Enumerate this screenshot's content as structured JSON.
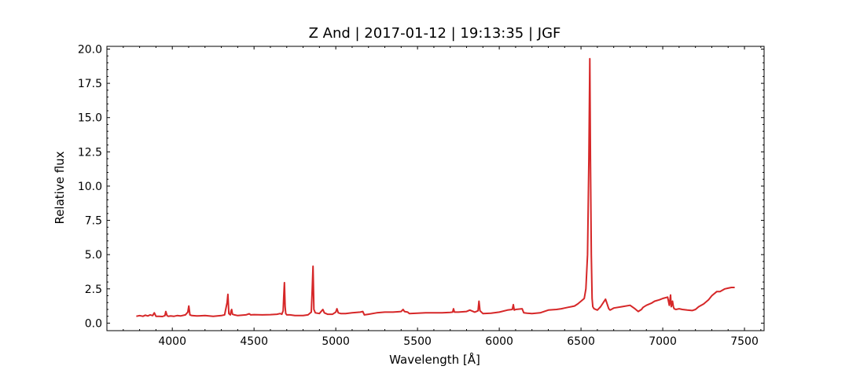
{
  "chart_data": {
    "type": "line",
    "title": "Z And | 2017-01-12 | 19:13:35 | JGF",
    "xlabel": "Wavelength [Å]",
    "ylabel": "Relative flux",
    "xlim": [
      3600,
      7620
    ],
    "ylim": [
      -0.55,
      20.2
    ],
    "x_ticks": [
      4000,
      4500,
      5000,
      5500,
      6000,
      6500,
      7000,
      7500
    ],
    "y_ticks": [
      0.0,
      2.5,
      5.0,
      7.5,
      10.0,
      12.5,
      15.0,
      17.5,
      20.0
    ],
    "x_tick_labels": [
      "4000",
      "4500",
      "5000",
      "5500",
      "6000",
      "6500",
      "7000",
      "7500"
    ],
    "y_tick_labels": [
      "0.0",
      "2.5",
      "5.0",
      "7.5",
      "10.0",
      "12.5",
      "15.0",
      "17.5",
      "20.0"
    ],
    "grid": false,
    "colors": {
      "line": "#d62728"
    },
    "series": [
      {
        "x": [
          3780,
          3800,
          3820,
          3835,
          3850,
          3865,
          3880,
          3890,
          3900,
          3920,
          3940,
          3955,
          3960,
          3968,
          3975,
          3990,
          4010,
          4030,
          4050,
          4080,
          4095,
          4101,
          4108,
          4120,
          4150,
          4200,
          4250,
          4300,
          4320,
          4335,
          4340,
          4346,
          4355,
          4360,
          4363,
          4368,
          4380,
          4400,
          4450,
          4471,
          4480,
          4500,
          4550,
          4600,
          4640,
          4660,
          4670,
          4678,
          4682,
          4686,
          4690,
          4694,
          4700,
          4720,
          4750,
          4800,
          4830,
          4850,
          4856,
          4861,
          4866,
          4875,
          4900,
          4921,
          4930,
          4950,
          4980,
          5000,
          5007,
          5015,
          5030,
          5060,
          5100,
          5150,
          5165,
          5175,
          5200,
          5250,
          5300,
          5350,
          5400,
          5412,
          5420,
          5440,
          5450,
          5500,
          5550,
          5600,
          5650,
          5700,
          5715,
          5720,
          5726,
          5750,
          5800,
          5820,
          5850,
          5870,
          5876,
          5882,
          5900,
          5950,
          6000,
          6050,
          6080,
          6086,
          6092,
          6100,
          6140,
          6150,
          6170,
          6200,
          6250,
          6300,
          6350,
          6380,
          6400,
          6420,
          6440,
          6460,
          6480,
          6500,
          6520,
          6530,
          6540,
          6548,
          6554,
          6558,
          6563,
          6568,
          6572,
          6580,
          6600,
          6620,
          6650,
          6670,
          6678,
          6685,
          6700,
          6750,
          6800,
          6830,
          6850,
          6870,
          6880,
          6900,
          6930,
          6950,
          6980,
          7000,
          7030,
          7040,
          7048,
          7052,
          7060,
          7065,
          7070,
          7080,
          7100,
          7120,
          7150,
          7180,
          7200,
          7220,
          7250,
          7270,
          7280,
          7300,
          7330,
          7350,
          7380,
          7400,
          7420,
          7440
        ],
        "y": [
          0.5,
          0.55,
          0.5,
          0.58,
          0.52,
          0.6,
          0.55,
          0.75,
          0.5,
          0.5,
          0.48,
          0.55,
          0.85,
          0.55,
          0.5,
          0.52,
          0.5,
          0.55,
          0.52,
          0.6,
          0.8,
          1.25,
          0.6,
          0.55,
          0.52,
          0.55,
          0.5,
          0.55,
          0.6,
          1.5,
          2.1,
          0.7,
          0.6,
          0.9,
          1.0,
          0.65,
          0.6,
          0.55,
          0.6,
          0.68,
          0.6,
          0.62,
          0.6,
          0.62,
          0.65,
          0.7,
          0.65,
          0.9,
          2.0,
          2.95,
          1.2,
          0.7,
          0.6,
          0.6,
          0.55,
          0.55,
          0.6,
          0.8,
          2.5,
          4.15,
          1.0,
          0.75,
          0.7,
          1.0,
          0.75,
          0.65,
          0.65,
          0.8,
          1.05,
          0.75,
          0.7,
          0.7,
          0.75,
          0.8,
          0.85,
          0.6,
          0.65,
          0.75,
          0.8,
          0.8,
          0.85,
          1.0,
          0.85,
          0.8,
          0.7,
          0.72,
          0.75,
          0.75,
          0.75,
          0.78,
          0.8,
          1.05,
          0.8,
          0.8,
          0.85,
          0.95,
          0.8,
          0.9,
          1.6,
          0.9,
          0.7,
          0.72,
          0.8,
          0.95,
          1.0,
          1.35,
          0.95,
          1.0,
          1.05,
          0.75,
          0.72,
          0.7,
          0.75,
          0.95,
          1.0,
          1.05,
          1.1,
          1.15,
          1.2,
          1.25,
          1.4,
          1.6,
          1.8,
          2.5,
          5.0,
          12.0,
          19.3,
          12.0,
          5.0,
          1.8,
          1.2,
          1.05,
          0.95,
          1.2,
          1.75,
          1.05,
          0.95,
          1.0,
          1.1,
          1.2,
          1.3,
          1.05,
          0.85,
          1.0,
          1.15,
          1.3,
          1.45,
          1.6,
          1.7,
          1.8,
          1.9,
          1.3,
          2.05,
          1.2,
          1.6,
          1.2,
          1.05,
          1.0,
          1.05,
          1.0,
          0.95,
          0.92,
          1.0,
          1.2,
          1.4,
          1.6,
          1.7,
          2.0,
          2.3,
          2.3,
          2.5,
          2.55,
          2.6,
          2.6
        ]
      }
    ]
  }
}
